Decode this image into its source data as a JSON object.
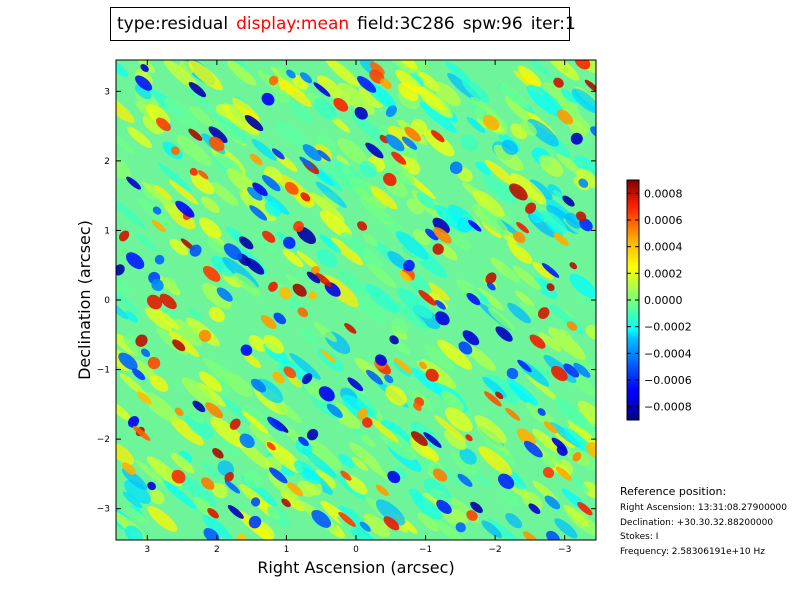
{
  "title_bar": {
    "type_label": "type:residual",
    "display_label": "display:mean",
    "field_label": "field:3C286",
    "spw_label": "spw:96",
    "iter_label": "iter:1",
    "highlight_color": "#ff0000"
  },
  "chart_data": {
    "type": "heatmap",
    "xlabel": "Right Ascension (arcsec)",
    "ylabel": "Declination (arcsec)",
    "x_range": [
      3.45,
      -3.45
    ],
    "y_range": [
      -3.45,
      3.45
    ],
    "x_ticks": [
      3,
      2,
      1,
      0,
      -1,
      -2,
      -3
    ],
    "x_tick_labels": [
      "3",
      "2",
      "1",
      "0",
      "−1",
      "−2",
      "−3"
    ],
    "y_ticks": [
      3,
      2,
      1,
      0,
      -1,
      -2,
      -3
    ],
    "y_tick_labels": [
      "3",
      "2",
      "1",
      "0",
      "−1",
      "−2",
      "−3"
    ],
    "colormap": "jet",
    "colorbar": {
      "range": [
        -0.0009,
        0.0009
      ],
      "ticks": [
        0.0008,
        0.0006,
        0.0004,
        0.0002,
        0.0,
        -0.0002,
        -0.0004,
        -0.0006,
        -0.0008
      ],
      "tick_labels": [
        "0.0008",
        "0.0006",
        "0.0004",
        "0.0002",
        "0.0000",
        "−0.0002",
        "−0.0004",
        "−0.0006",
        "−0.0008"
      ]
    },
    "description_of_values": "residual image noise, approximately zero-mean, values within about ±0.0009"
  },
  "reference_position": {
    "heading": "Reference position:",
    "right_ascension": "Right Ascension: 13:31:08.27900000",
    "declination": "Declination: +30.30.32.88200000",
    "stokes": "Stokes: I",
    "frequency": "Frequency: 2.58306191e+10 Hz"
  }
}
